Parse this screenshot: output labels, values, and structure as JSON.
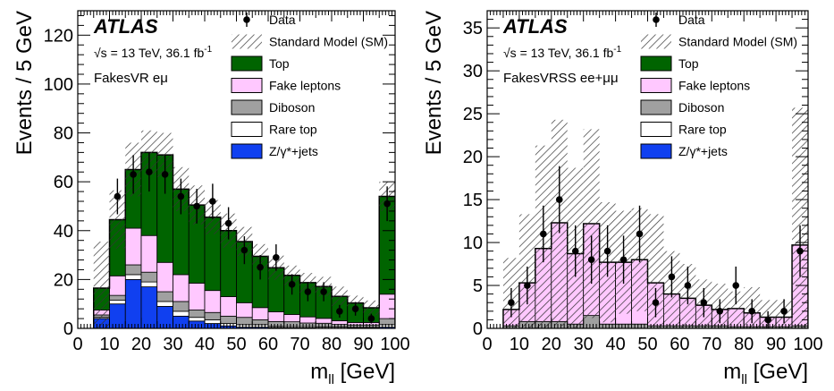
{
  "chart_data": [
    {
      "type": "bar",
      "stacked": true,
      "ylabel": "Events / 5 GeV",
      "xlabel": "m_ll [GeV]",
      "xlabel_main": "m",
      "xlabel_sub": "ll",
      "xlabel_unit": "[GeV]",
      "xlim": [
        0,
        100
      ],
      "ylim": [
        0,
        130
      ],
      "xticks": [
        0,
        10,
        20,
        30,
        40,
        50,
        60,
        70,
        80,
        90,
        100
      ],
      "yticks": [
        0,
        20,
        40,
        60,
        80,
        100,
        120
      ],
      "experiment": "ATLAS",
      "energy_label": "√s = 13 TeV, 36.1 fb",
      "lumi_superscript": "-1",
      "region_label": "FakesVR eμ",
      "bin_edges": [
        5,
        10,
        15,
        20,
        25,
        30,
        35,
        40,
        45,
        50,
        55,
        60,
        65,
        70,
        75,
        80,
        85,
        90,
        95,
        100
      ],
      "legend": [
        "Data",
        "Standard Model (SM)",
        "Top",
        "Fake leptons",
        "Diboson",
        "Rare top",
        "Z/γ*+jets"
      ],
      "series": [
        {
          "name": "Z/γ*+jets",
          "color": "#1040f0",
          "values": [
            4,
            10,
            20,
            17,
            9,
            5,
            3,
            2,
            1,
            0.5,
            0.5,
            0.3,
            0.2,
            0.2,
            0.1,
            0.1,
            0.1,
            0.1,
            0.5
          ]
        },
        {
          "name": "Rare top",
          "color": "#ffffff",
          "values": [
            0.5,
            1.5,
            2,
            2,
            2,
            2,
            1.5,
            1.5,
            1,
            1,
            1,
            0.5,
            0.5,
            0.5,
            0.5,
            0.5,
            0.3,
            0.3,
            1
          ]
        },
        {
          "name": "Diboson",
          "color": "#a0a0a0",
          "values": [
            1,
            2,
            4,
            4,
            4,
            4,
            3,
            3,
            3,
            3,
            2,
            2,
            2,
            1.5,
            1.5,
            1,
            1,
            1,
            2.5
          ]
        },
        {
          "name": "Fake leptons",
          "color": "#ffc8ff",
          "values": [
            2,
            8,
            15,
            15,
            12,
            11,
            11,
            9,
            8,
            6,
            5,
            4,
            3,
            2.5,
            2,
            1.5,
            1,
            1,
            10
          ]
        },
        {
          "name": "Top",
          "color": "#006400",
          "values": [
            9,
            23,
            24,
            34,
            44,
            35,
            32,
            30,
            27,
            25,
            21,
            18,
            16,
            14,
            13,
            10,
            8,
            6,
            40
          ]
        }
      ],
      "sm_uncertainty": [
        19,
        12,
        11,
        9,
        9,
        9,
        8,
        7,
        7,
        6,
        5,
        5,
        4,
        4,
        4,
        4,
        3,
        3,
        6
      ],
      "data": [
        {
          "x": 12.5,
          "y": 54,
          "err": 7.3
        },
        {
          "x": 17.5,
          "y": 63,
          "err": 7.9
        },
        {
          "x": 22.5,
          "y": 64,
          "err": 8
        },
        {
          "x": 27.5,
          "y": 63,
          "err": 7.9
        },
        {
          "x": 32.5,
          "y": 54,
          "err": 7.3
        },
        {
          "x": 37.5,
          "y": 50,
          "err": 7.1
        },
        {
          "x": 42.5,
          "y": 52,
          "err": 7.2
        },
        {
          "x": 47.5,
          "y": 43,
          "err": 6.6
        },
        {
          "x": 52.5,
          "y": 32,
          "err": 5.7
        },
        {
          "x": 57.5,
          "y": 25,
          "err": 5
        },
        {
          "x": 62.5,
          "y": 29,
          "err": 5.4
        },
        {
          "x": 67.5,
          "y": 18,
          "err": 4.2
        },
        {
          "x": 72.5,
          "y": 15,
          "err": 3.9
        },
        {
          "x": 77.5,
          "y": 15,
          "err": 3.9
        },
        {
          "x": 82.5,
          "y": 7,
          "err": 2.6
        },
        {
          "x": 87.5,
          "y": 8,
          "err": 2.8
        },
        {
          "x": 92.5,
          "y": 4,
          "err": 2
        },
        {
          "x": 97.5,
          "y": 51,
          "err": 7.1
        }
      ]
    },
    {
      "type": "bar",
      "stacked": true,
      "ylabel": "Events / 5 GeV",
      "xlabel": "m_ll [GeV]",
      "xlabel_main": "m",
      "xlabel_sub": "ll",
      "xlabel_unit": "[GeV]",
      "xlim": [
        0,
        100
      ],
      "ylim": [
        0,
        37
      ],
      "xticks": [
        0,
        10,
        20,
        30,
        40,
        50,
        60,
        70,
        80,
        90,
        100
      ],
      "yticks": [
        0,
        5,
        10,
        15,
        20,
        25,
        30,
        35
      ],
      "experiment": "ATLAS",
      "energy_label": "√s = 13 TeV, 36.1 fb",
      "lumi_superscript": "-1",
      "region_label": "FakesVRSS ee+μμ",
      "bin_edges": [
        5,
        10,
        15,
        20,
        25,
        30,
        35,
        40,
        45,
        50,
        55,
        60,
        65,
        70,
        75,
        80,
        85,
        90,
        95,
        100
      ],
      "legend": [
        "Data",
        "Standard Model (SM)",
        "Top",
        "Fake leptons",
        "Diboson",
        "Rare top",
        "Z/γ*+jets"
      ],
      "series": [
        {
          "name": "Z/γ*+jets",
          "color": "#1040f0",
          "values": [
            0,
            0,
            0,
            0,
            0,
            0,
            0,
            0,
            0,
            0,
            0,
            0,
            0,
            0,
            0,
            0,
            0,
            0,
            0
          ]
        },
        {
          "name": "Rare top",
          "color": "#ffffff",
          "values": [
            0,
            0,
            0,
            0,
            0,
            0,
            0,
            0,
            0,
            0,
            0,
            0,
            0,
            0,
            0,
            0,
            0,
            0,
            0
          ]
        },
        {
          "name": "Diboson",
          "color": "#a0a0a0",
          "values": [
            0.3,
            0.8,
            0.8,
            0.8,
            0.5,
            1.5,
            0.5,
            0.5,
            0.5,
            0.3,
            0.3,
            0.3,
            0.3,
            0.3,
            0.2,
            0.2,
            0.2,
            0.2,
            0.3
          ]
        },
        {
          "name": "Fake leptons",
          "color": "#ffc8ff",
          "values": [
            1.9,
            4.5,
            8.5,
            11.5,
            8.2,
            10.7,
            7.2,
            7.2,
            7.5,
            5.0,
            3.7,
            3.2,
            2.4,
            1.9,
            2.1,
            1.6,
            1.1,
            1.1,
            9.4
          ]
        },
        {
          "name": "Top",
          "color": "#006400",
          "values": [
            0,
            0,
            0,
            0,
            0,
            0,
            0,
            0,
            0,
            0,
            0,
            0,
            0,
            0,
            0,
            0,
            0,
            0,
            0
          ]
        }
      ],
      "sm_uncertainty": [
        6,
        8,
        12,
        12,
        10,
        11,
        7,
        6,
        6,
        8,
        5,
        4,
        3,
        3,
        2,
        3,
        2,
        2,
        16
      ],
      "data": [
        {
          "x": 7.5,
          "y": 3,
          "err": 1.7
        },
        {
          "x": 12.5,
          "y": 5,
          "err": 2.2
        },
        {
          "x": 17.5,
          "y": 11,
          "err": 3.3
        },
        {
          "x": 22.5,
          "y": 15,
          "err": 3.9
        },
        {
          "x": 27.5,
          "y": 9,
          "err": 3
        },
        {
          "x": 32.5,
          "y": 8,
          "err": 2.8
        },
        {
          "x": 37.5,
          "y": 9,
          "err": 3
        },
        {
          "x": 42.5,
          "y": 8,
          "err": 2.8
        },
        {
          "x": 47.5,
          "y": 11,
          "err": 3.3
        },
        {
          "x": 52.5,
          "y": 3,
          "err": 1.7
        },
        {
          "x": 57.5,
          "y": 6,
          "err": 2.4
        },
        {
          "x": 62.5,
          "y": 5,
          "err": 2.2
        },
        {
          "x": 67.5,
          "y": 3,
          "err": 1.7
        },
        {
          "x": 72.5,
          "y": 2,
          "err": 1.4
        },
        {
          "x": 77.5,
          "y": 5,
          "err": 2.2
        },
        {
          "x": 82.5,
          "y": 2,
          "err": 1.4
        },
        {
          "x": 87.5,
          "y": 1,
          "err": 1
        },
        {
          "x": 92.5,
          "y": 2,
          "err": 1.4
        },
        {
          "x": 97.5,
          "y": 9,
          "err": 3
        }
      ]
    }
  ]
}
